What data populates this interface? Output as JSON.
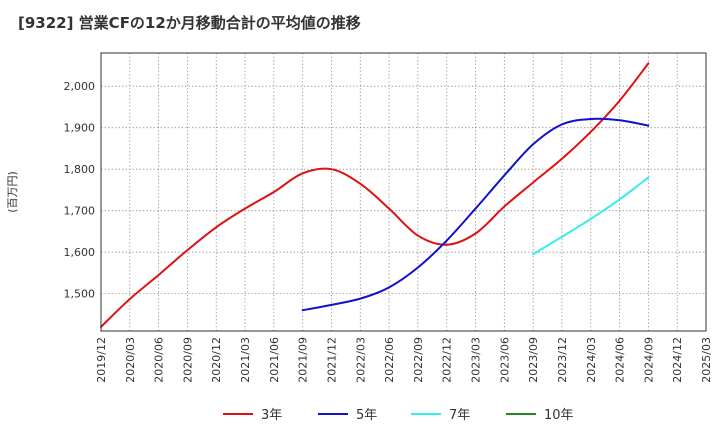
{
  "chart_data": {
    "type": "line",
    "title": "[9322]  営業CFの12か月移動合計の平均値の推移",
    "ylabel": "(百万円)",
    "xlabel": "",
    "x_categories": [
      "2019/12",
      "2020/03",
      "2020/06",
      "2020/09",
      "2020/12",
      "2021/03",
      "2021/06",
      "2021/09",
      "2021/12",
      "2022/03",
      "2022/06",
      "2022/09",
      "2022/12",
      "2023/03",
      "2023/06",
      "2023/09",
      "2023/12",
      "2024/03",
      "2024/06",
      "2024/09",
      "2024/12",
      "2025/03"
    ],
    "ylim": [
      1410,
      2080
    ],
    "y_ticks": [
      1500,
      1600,
      1700,
      1800,
      1900,
      2000
    ],
    "y_tick_labels": [
      "1,500",
      "1,600",
      "1,700",
      "1,800",
      "1,900",
      "2,000"
    ],
    "grid": true,
    "legend_position": "bottom",
    "series": [
      {
        "name": "3年",
        "color": "#dd1111",
        "points": [
          [
            "2019/12",
            1420
          ],
          [
            "2020/03",
            1487
          ],
          [
            "2020/06",
            1545
          ],
          [
            "2020/09",
            1605
          ],
          [
            "2020/12",
            1660
          ],
          [
            "2021/03",
            1705
          ],
          [
            "2021/06",
            1745
          ],
          [
            "2021/09",
            1790
          ],
          [
            "2021/12",
            1800
          ],
          [
            "2022/03",
            1765
          ],
          [
            "2022/06",
            1705
          ],
          [
            "2022/09",
            1640
          ],
          [
            "2022/12",
            1618
          ],
          [
            "2023/03",
            1645
          ],
          [
            "2023/06",
            1710
          ],
          [
            "2023/09",
            1768
          ],
          [
            "2023/12",
            1825
          ],
          [
            "2024/03",
            1890
          ],
          [
            "2024/06",
            1965
          ],
          [
            "2024/09",
            2055
          ]
        ]
      },
      {
        "name": "5年",
        "color": "#1111cc",
        "points": [
          [
            "2021/09",
            1460
          ],
          [
            "2021/12",
            1473
          ],
          [
            "2022/03",
            1488
          ],
          [
            "2022/06",
            1515
          ],
          [
            "2022/09",
            1563
          ],
          [
            "2022/12",
            1628
          ],
          [
            "2023/03",
            1705
          ],
          [
            "2023/06",
            1785
          ],
          [
            "2023/09",
            1860
          ],
          [
            "2023/12",
            1908
          ],
          [
            "2024/03",
            1921
          ],
          [
            "2024/06",
            1918
          ],
          [
            "2024/09",
            1905
          ]
        ]
      },
      {
        "name": "7年",
        "color": "#33eeee",
        "points": [
          [
            "2023/09",
            1595
          ],
          [
            "2023/12",
            1637
          ],
          [
            "2024/03",
            1680
          ],
          [
            "2024/06",
            1727
          ],
          [
            "2024/09",
            1780
          ]
        ]
      },
      {
        "name": "10年",
        "color": "#228822",
        "points": []
      }
    ]
  }
}
